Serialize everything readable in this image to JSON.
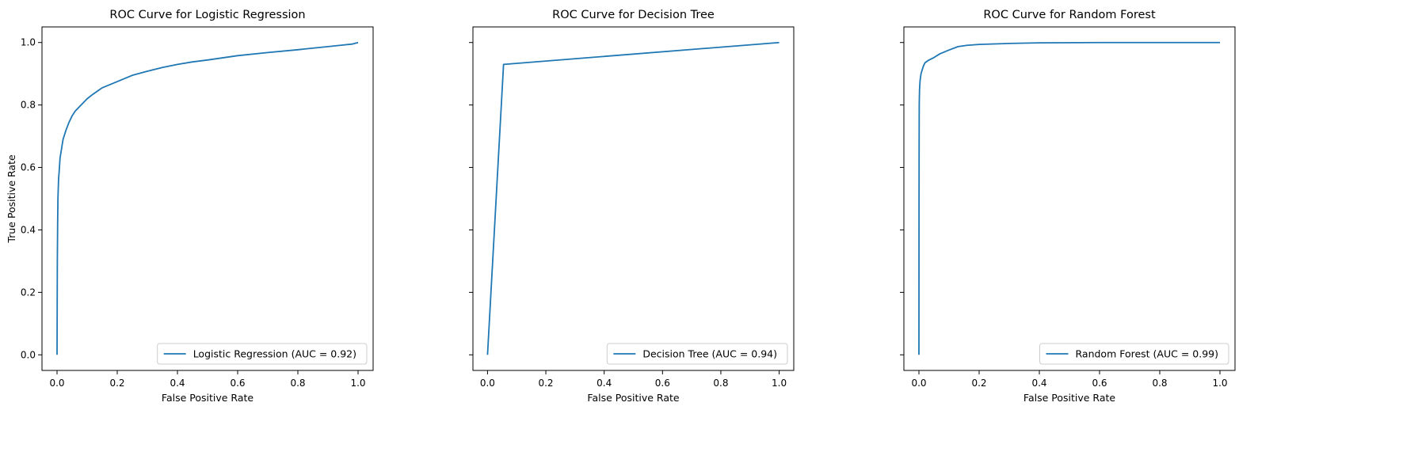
{
  "chart_data": [
    {
      "type": "line",
      "title": "ROC Curve for Logistic Regression",
      "xlabel": "False Positive Rate",
      "ylabel": "True Positive Rate",
      "xlim": [
        -0.05,
        1.05
      ],
      "ylim": [
        -0.05,
        1.05
      ],
      "xticks": [
        "0.0",
        "0.2",
        "0.4",
        "0.6",
        "0.8",
        "1.0"
      ],
      "yticks": [
        "0.0",
        "0.2",
        "0.4",
        "0.6",
        "0.8",
        "1.0"
      ],
      "legend_position": "lower-right",
      "series": [
        {
          "name": "Logistic Regression (AUC = 0.92)",
          "color": "#1f77b4",
          "x": [
            0,
            0.001,
            0.002,
            0.003,
            0.005,
            0.008,
            0.01,
            0.015,
            0.02,
            0.03,
            0.04,
            0.05,
            0.06,
            0.08,
            0.1,
            0.12,
            0.15,
            0.2,
            0.25,
            0.3,
            0.35,
            0.4,
            0.45,
            0.5,
            0.6,
            0.7,
            0.8,
            0.9,
            0.95,
            0.98,
            1.0
          ],
          "y": [
            0,
            0.3,
            0.42,
            0.5,
            0.56,
            0.6,
            0.63,
            0.66,
            0.69,
            0.72,
            0.745,
            0.765,
            0.78,
            0.8,
            0.82,
            0.835,
            0.855,
            0.875,
            0.895,
            0.908,
            0.92,
            0.93,
            0.938,
            0.944,
            0.958,
            0.968,
            0.977,
            0.987,
            0.992,
            0.995,
            1.0
          ]
        }
      ]
    },
    {
      "type": "line",
      "title": "ROC Curve for Decision Tree",
      "xlabel": "False Positive Rate",
      "ylabel": "",
      "xlim": [
        -0.05,
        1.05
      ],
      "ylim": [
        -0.05,
        1.05
      ],
      "xticks": [
        "0.0",
        "0.2",
        "0.4",
        "0.6",
        "0.8",
        "1.0"
      ],
      "yticks": [],
      "legend_position": "lower-right",
      "series": [
        {
          "name": "Decision Tree (AUC = 0.94)",
          "color": "#1f77b4",
          "x": [
            0,
            0.055,
            1.0
          ],
          "y": [
            0,
            0.93,
            1.0
          ]
        }
      ]
    },
    {
      "type": "line",
      "title": "ROC Curve for Random Forest",
      "xlabel": "False Positive Rate",
      "ylabel": "",
      "xlim": [
        -0.05,
        1.05
      ],
      "ylim": [
        -0.05,
        1.05
      ],
      "xticks": [
        "0.0",
        "0.2",
        "0.4",
        "0.6",
        "0.8",
        "1.0"
      ],
      "yticks": [],
      "legend_position": "lower-right",
      "series": [
        {
          "name": "Random Forest (AUC = 0.99)",
          "color": "#1f77b4",
          "x": [
            0,
            0.0003,
            0.0006,
            0.001,
            0.002,
            0.004,
            0.007,
            0.01,
            0.015,
            0.02,
            0.03,
            0.05,
            0.07,
            0.1,
            0.13,
            0.16,
            0.2,
            0.3,
            0.4,
            0.6,
            0.8,
            1.0
          ],
          "y": [
            0,
            0.45,
            0.65,
            0.8,
            0.85,
            0.88,
            0.9,
            0.91,
            0.925,
            0.935,
            0.942,
            0.952,
            0.964,
            0.976,
            0.987,
            0.991,
            0.994,
            0.997,
            0.999,
            1.0,
            1.0,
            1.0
          ]
        }
      ]
    }
  ]
}
